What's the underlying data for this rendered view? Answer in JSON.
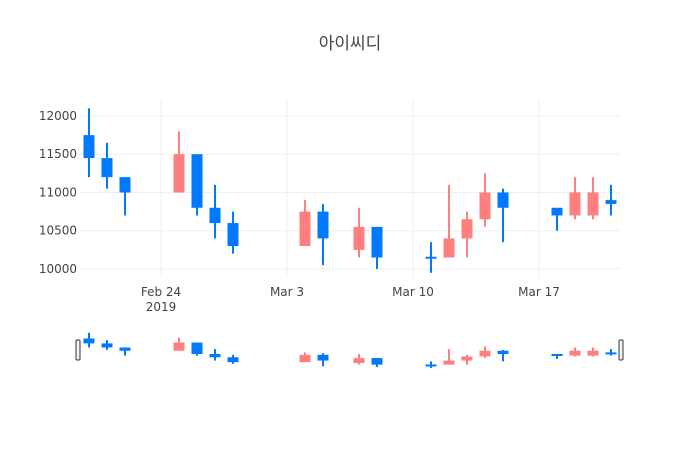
{
  "chart_data": {
    "type": "candlestick",
    "title": "아이씨디",
    "xlabel": "",
    "ylabel": "",
    "ylim": [
      9882,
      12209
    ],
    "xlim": [
      "2019-02-19T12:00",
      "2019-03-21T12:00"
    ],
    "grid": true,
    "legend": "none",
    "yticks": [
      10000,
      10500,
      11000,
      11500,
      12000
    ],
    "xticks": [
      {
        "date": "2019-02-24",
        "label": "Feb 24",
        "sublabel": "2019"
      },
      {
        "date": "2019-03-03",
        "label": "Mar 3",
        "sublabel": ""
      },
      {
        "date": "2019-03-10",
        "label": "Mar 10",
        "sublabel": ""
      },
      {
        "date": "2019-03-17",
        "label": "Mar 17",
        "sublabel": ""
      }
    ],
    "colors": {
      "increasing": "#ff7f7f",
      "decreasing": "#0078ff"
    },
    "rangeslider": {
      "visible": true
    },
    "x": [
      "2019-02-20",
      "2019-02-21",
      "2019-02-22",
      "2019-02-25",
      "2019-02-26",
      "2019-02-27",
      "2019-02-28",
      "2019-03-04",
      "2019-03-05",
      "2019-03-07",
      "2019-03-08",
      "2019-03-11",
      "2019-03-12",
      "2019-03-13",
      "2019-03-14",
      "2019-03-15",
      "2019-03-18",
      "2019-03-19",
      "2019-03-20",
      "2019-03-21"
    ],
    "open": [
      11750,
      11450,
      11200,
      11000,
      11500,
      10800,
      10600,
      10300,
      10750,
      10250,
      10550,
      10160,
      10150,
      10400,
      10650,
      11000,
      10800,
      10700,
      10700,
      10900
    ],
    "high": [
      12100,
      11650,
      11200,
      11800,
      11500,
      11100,
      10750,
      10900,
      10850,
      10800,
      10550,
      10350,
      11100,
      10750,
      11250,
      11050,
      10800,
      11200,
      11200,
      11100
    ],
    "low": [
      11200,
      11050,
      10700,
      11000,
      10700,
      10400,
      10200,
      10300,
      10050,
      10150,
      10000,
      9950,
      10150,
      10150,
      10550,
      10350,
      10500,
      10650,
      10650,
      10700
    ],
    "close": [
      11450,
      11200,
      11000,
      11500,
      10800,
      10600,
      10300,
      10750,
      10400,
      10550,
      10150,
      10150,
      10400,
      10650,
      11000,
      10800,
      10700,
      11000,
      11000,
      10850
    ]
  }
}
